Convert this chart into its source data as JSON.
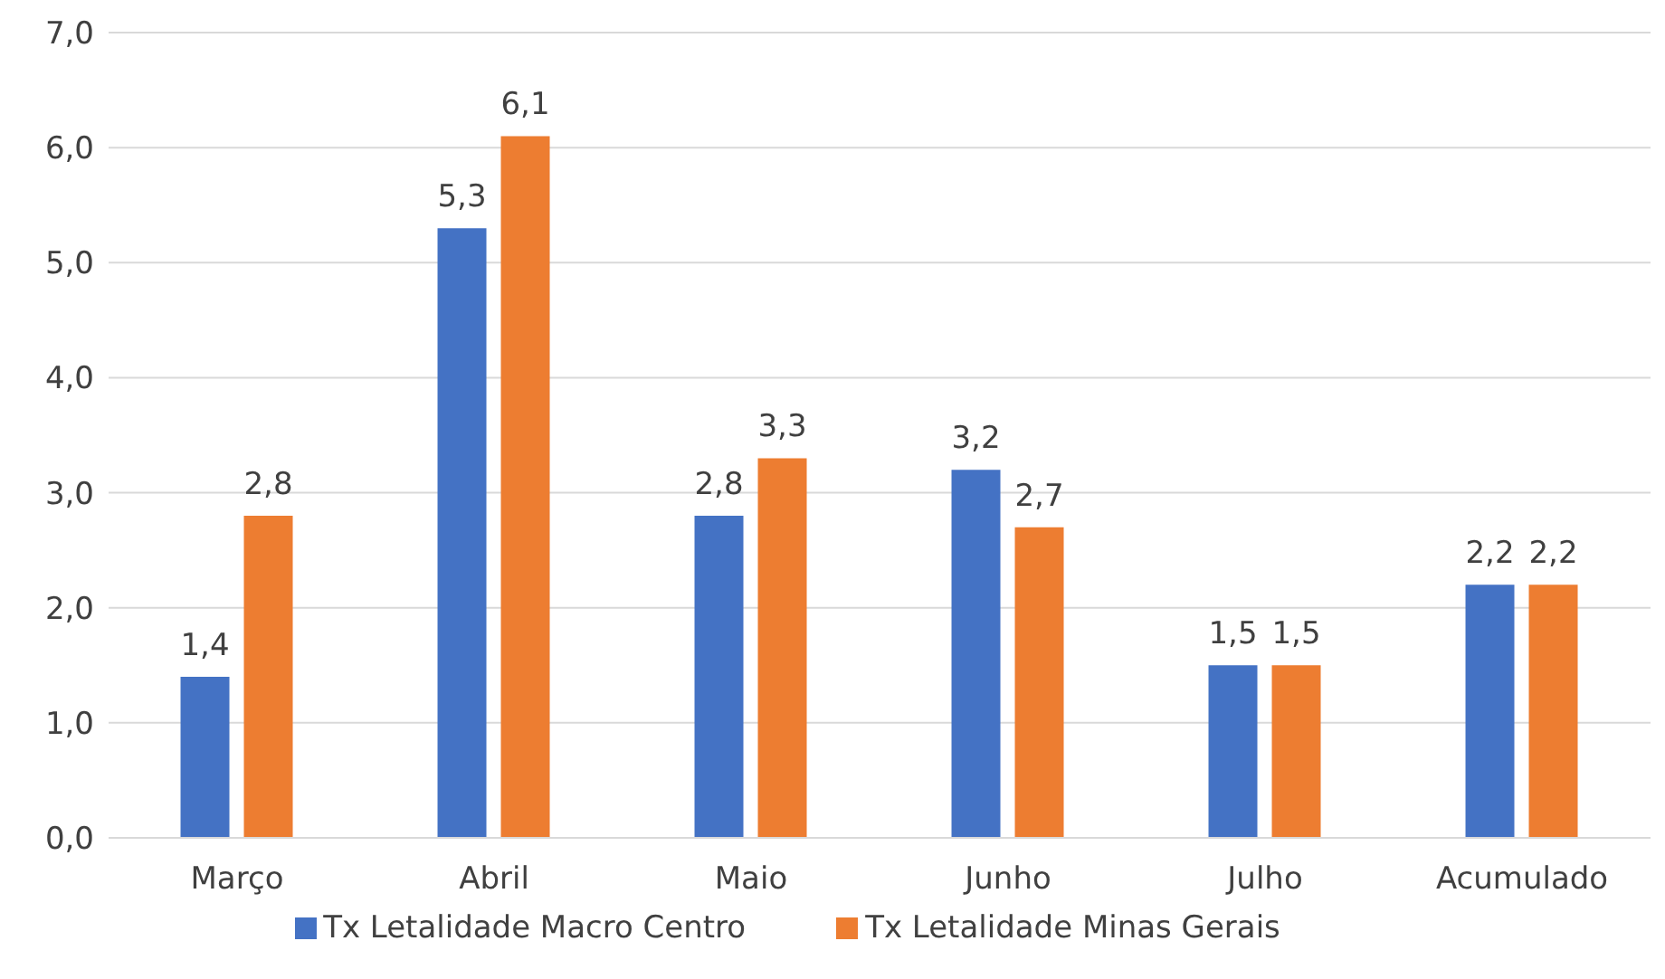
{
  "chart_data": {
    "type": "bar",
    "categories": [
      "Março",
      "Abril",
      "Maio",
      "Junho",
      "Julho",
      "Acumulado"
    ],
    "series": [
      {
        "name": "Tx Letalidade Macro Centro",
        "color": "#4472c4",
        "values": [
          1.4,
          5.3,
          2.8,
          3.2,
          1.5,
          2.2
        ],
        "value_labels": [
          "1,4",
          "5,3",
          "2,8",
          "3,2",
          "1,5",
          "2,2"
        ]
      },
      {
        "name": "Tx Letalidade Minas Gerais",
        "color": "#ed7d31",
        "values": [
          2.8,
          6.1,
          3.3,
          2.7,
          1.5,
          2.2
        ],
        "value_labels": [
          "2,8",
          "6,1",
          "3,3",
          "2,7",
          "1,5",
          "2,2"
        ]
      }
    ],
    "ylim": [
      0,
      7
    ],
    "yticks": [
      {
        "value": 0,
        "label": "0,0"
      },
      {
        "value": 1,
        "label": "1,0"
      },
      {
        "value": 2,
        "label": "2,0"
      },
      {
        "value": 3,
        "label": "3,0"
      },
      {
        "value": 4,
        "label": "4,0"
      },
      {
        "value": 5,
        "label": "5,0"
      },
      {
        "value": 6,
        "label": "6,0"
      },
      {
        "value": 7,
        "label": "7,0"
      }
    ],
    "grid": "y",
    "legend": "bottom"
  }
}
